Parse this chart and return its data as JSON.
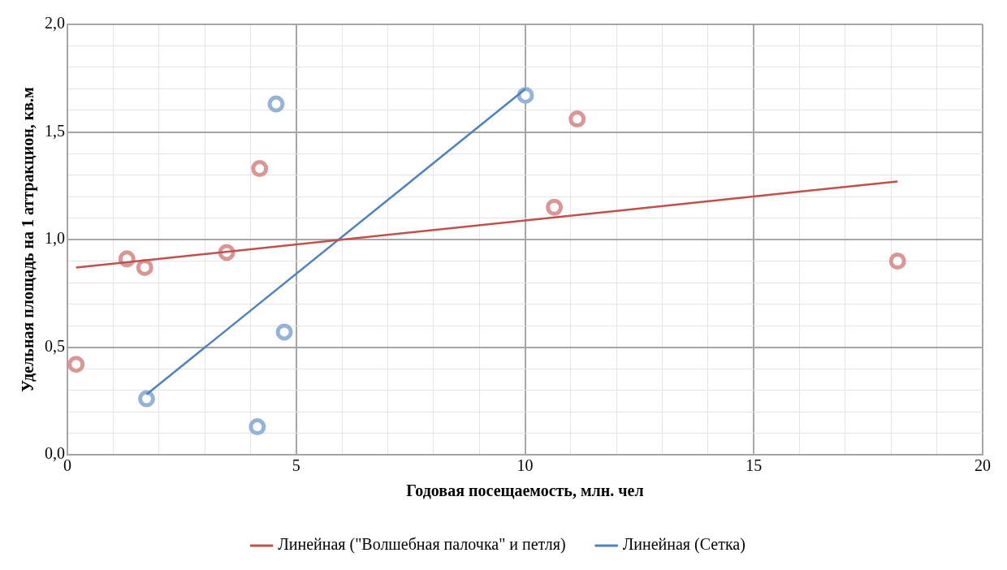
{
  "chart_data": {
    "type": "scatter",
    "xlabel": "Годовая посещаемость, млн. чел",
    "ylabel": "Удельная площадь на 1 аттракцион, кв.м",
    "xlim": [
      0,
      20
    ],
    "ylim": [
      0,
      2
    ],
    "xticks": [
      0,
      {
        "value": 1,
        "label": null
      },
      {
        "value": 2,
        "label": null
      },
      {
        "value": 3,
        "label": null
      },
      {
        "value": 4,
        "label": null
      },
      5,
      {
        "value": 6,
        "label": null
      },
      {
        "value": 7,
        "label": null
      },
      {
        "value": 8,
        "label": null
      },
      {
        "value": 9,
        "label": null
      },
      10,
      {
        "value": 11,
        "label": null
      },
      {
        "value": 12,
        "label": null
      },
      {
        "value": 13,
        "label": null
      },
      {
        "value": 14,
        "label": null
      },
      15,
      {
        "value": 16,
        "label": null
      },
      {
        "value": 17,
        "label": null
      },
      {
        "value": 18,
        "label": null
      },
      {
        "value": 19,
        "label": null
      },
      20
    ],
    "yticks": [
      {
        "value": 0,
        "label": "0,0"
      },
      {
        "value": 0.1,
        "label": null
      },
      {
        "value": 0.2,
        "label": null
      },
      {
        "value": 0.3,
        "label": null
      },
      {
        "value": 0.4,
        "label": null
      },
      {
        "value": 0.5,
        "label": "0,5"
      },
      {
        "value": 0.6,
        "label": null
      },
      {
        "value": 0.7,
        "label": null
      },
      {
        "value": 0.8,
        "label": null
      },
      {
        "value": 0.9,
        "label": null
      },
      {
        "value": 1,
        "label": "1,0"
      },
      {
        "value": 1.1,
        "label": null
      },
      {
        "value": 1.2,
        "label": null
      },
      {
        "value": 1.3,
        "label": null
      },
      {
        "value": 1.4,
        "label": null
      },
      {
        "value": 1.5,
        "label": "1,5"
      },
      {
        "value": 1.6,
        "label": null
      },
      {
        "value": 1.7,
        "label": null
      },
      {
        "value": 1.8,
        "label": null
      },
      {
        "value": 1.9,
        "label": null
      },
      {
        "value": 2,
        "label": "2,0"
      }
    ],
    "grid": true,
    "legend": "bottom",
    "marker": "circle",
    "series": [
      {
        "type": "scatter",
        "color": "#d99694",
        "x": [
          0.19,
          1.3,
          1.69,
          3.48,
          4.2,
          10.64,
          11.14,
          18.14
        ],
        "values": [
          0.42,
          0.91,
          0.87,
          0.94,
          1.33,
          1.15,
          1.56,
          0.9
        ]
      },
      {
        "type": "scatter",
        "color": "#95b3d7",
        "x": [
          1.73,
          4.15,
          4.56,
          4.74,
          10.01
        ],
        "values": [
          0.26,
          0.13,
          1.63,
          0.57,
          1.67
        ]
      },
      {
        "type": "line",
        "name": "Линейная (\"Волшебная палочка\" и петля)",
        "color": "#c0504d",
        "x": [
          0.19,
          18.14
        ],
        "values": [
          0.87,
          1.27
        ],
        "marker": "none"
      },
      {
        "type": "line",
        "name": "Линейная (Сетка)",
        "color": "#4f81bd",
        "x": [
          1.73,
          10.01
        ],
        "values": [
          0.28,
          1.7
        ],
        "marker": "none"
      }
    ]
  }
}
